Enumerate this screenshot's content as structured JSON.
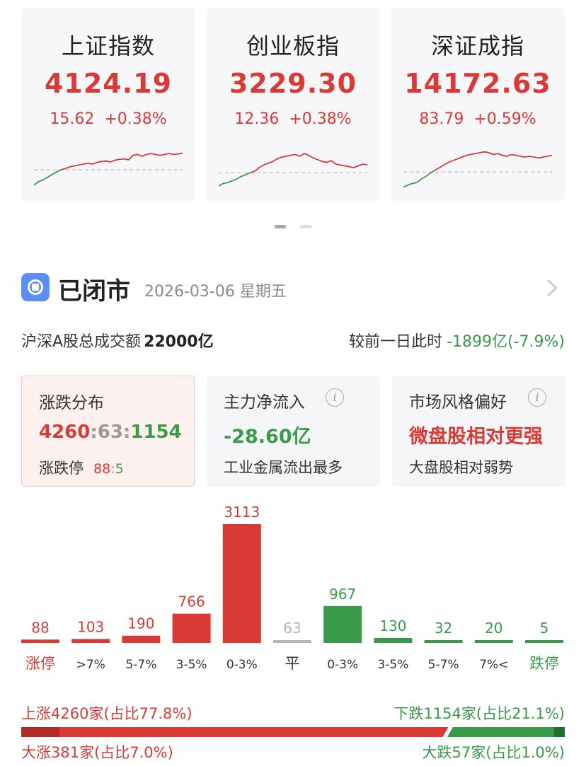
{
  "colors": {
    "up": "#d93a35",
    "down": "#3a9a4a",
    "flat": "#b5b5b5",
    "accent": "#5b8ff5"
  },
  "indices": [
    {
      "name": "上证指数",
      "value": "4124.19",
      "change": "15.62",
      "pct": "+0.38%",
      "spark": {
        "base": 0.55,
        "series": [
          0.9,
          0.82,
          0.78,
          0.72,
          0.66,
          0.6,
          0.55,
          0.52,
          0.48,
          0.46,
          0.44,
          0.42,
          0.4,
          0.42,
          0.38,
          0.36,
          0.35,
          0.37,
          0.33,
          0.31,
          0.3,
          0.32,
          0.22,
          0.2,
          0.24,
          0.2,
          0.18,
          0.2,
          0.22,
          0.2,
          0.18,
          0.2,
          0.19,
          0.17
        ]
      }
    },
    {
      "name": "创业板指",
      "value": "3229.30",
      "change": "12.36",
      "pct": "+0.38%",
      "spark": {
        "base": 0.62,
        "series": [
          0.92,
          0.86,
          0.84,
          0.8,
          0.76,
          0.7,
          0.66,
          0.62,
          0.58,
          0.5,
          0.44,
          0.4,
          0.36,
          0.3,
          0.26,
          0.24,
          0.22,
          0.2,
          0.24,
          0.18,
          0.22,
          0.28,
          0.32,
          0.36,
          0.38,
          0.34,
          0.42,
          0.44,
          0.46,
          0.48,
          0.5,
          0.46,
          0.42,
          0.44
        ]
      }
    },
    {
      "name": "深证成指",
      "value": "14172.63",
      "change": "83.79",
      "pct": "+0.59%",
      "spark": {
        "base": 0.6,
        "series": [
          0.94,
          0.9,
          0.86,
          0.84,
          0.76,
          0.7,
          0.62,
          0.56,
          0.5,
          0.44,
          0.38,
          0.34,
          0.3,
          0.26,
          0.22,
          0.2,
          0.18,
          0.16,
          0.14,
          0.16,
          0.2,
          0.18,
          0.22,
          0.24,
          0.2,
          0.22,
          0.24,
          0.26,
          0.24,
          0.26,
          0.28,
          0.26,
          0.24,
          0.22
        ]
      }
    }
  ],
  "pager": {
    "active": 0,
    "count": 2
  },
  "status": {
    "title": "已闭市",
    "date": "2026-03-06 星期五"
  },
  "turnover": {
    "label": "沪深A股总成交额",
    "value": "22000亿",
    "compare_label": "较前一日此时",
    "compare_value": "-1899亿(-7.9%)"
  },
  "boxes": {
    "distribution": {
      "title": "涨跌分布",
      "up": "4260",
      "flat": "63",
      "down": "1154",
      "limit_label": "涨跌停",
      "limit_up": "88",
      "limit_down": "5"
    },
    "inflow": {
      "title": "主力净流入",
      "info": "i",
      "value": "-28.60亿",
      "sub": "工业金属流出最多"
    },
    "style": {
      "title": "市场风格偏好",
      "info": "i",
      "value": "微盘股相对更强",
      "sub": "大盘股相对弱势"
    }
  },
  "chart_data": {
    "type": "bar",
    "categories": [
      "涨停",
      ">7%",
      "5-7%",
      "3-5%",
      "0-3%",
      "平",
      "0-3%",
      "3-5%",
      "5-7%",
      "7%<",
      "跌停"
    ],
    "values": [
      88,
      103,
      190,
      766,
      3113,
      63,
      967,
      130,
      32,
      20,
      5
    ],
    "groups": [
      "up",
      "up",
      "up",
      "up",
      "up",
      "flat",
      "down",
      "down",
      "down",
      "down",
      "down"
    ],
    "ylim": [
      0,
      3113
    ]
  },
  "summary": {
    "rise": "上涨4260家(占比77.8%)",
    "fall": "下跌1154家(占比21.1%)",
    "big_rise": "大涨381家(占比7.0%)",
    "big_fall": "大跌57家(占比1.0%)",
    "rise_ratio": 0.778,
    "fall_ratio": 0.211
  }
}
